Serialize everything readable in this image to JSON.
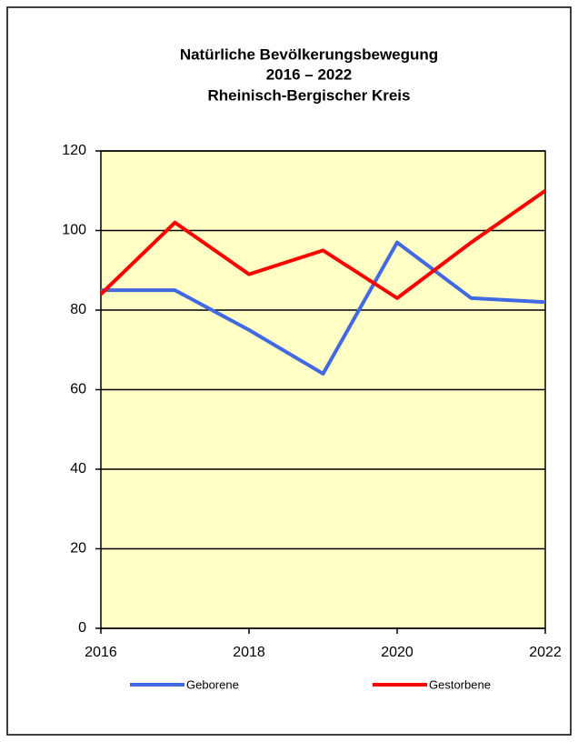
{
  "chart_data": {
    "type": "line",
    "title": [
      "Natürliche Bevölkerungsbewegung",
      "2016 – 2022",
      "Rheinisch-Bergischer Kreis"
    ],
    "x": [
      2016,
      2017,
      2018,
      2019,
      2020,
      2021,
      2022
    ],
    "series": [
      {
        "name": "Geborene",
        "color": "#4169e1",
        "values": [
          85,
          85,
          75,
          64,
          97,
          83,
          82
        ]
      },
      {
        "name": "Gestorbene",
        "color": "#ff0000",
        "values": [
          84,
          102,
          89,
          95,
          83,
          97,
          110
        ]
      }
    ],
    "xlim": [
      2016,
      2022
    ],
    "xticks": [
      2016,
      2018,
      2020,
      2022
    ],
    "ylim": [
      0,
      120
    ],
    "yticks": [
      0,
      20,
      40,
      60,
      80,
      100,
      120
    ],
    "grid": true,
    "plot_background": "#ffffc6",
    "legend": "bottom"
  }
}
